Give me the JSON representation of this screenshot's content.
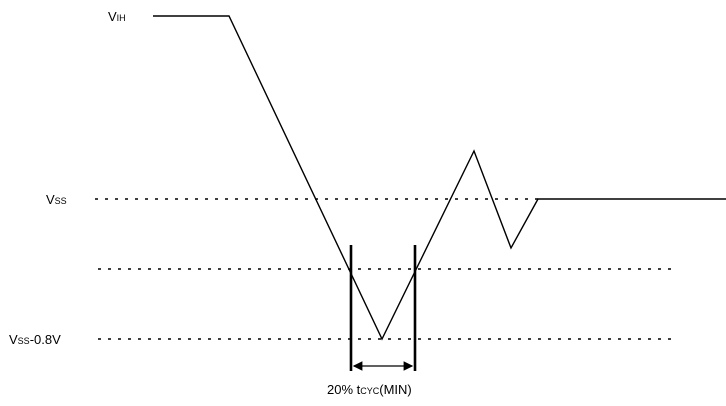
{
  "labels": {
    "vih": {
      "main": "V",
      "sub": "IH"
    },
    "vss": {
      "main": "V",
      "sub": "SS"
    },
    "vss_neg": {
      "main": "V",
      "sub": "SS",
      "suffix": "-0.8V"
    },
    "pulse_width": {
      "prefix": "20% t",
      "sub": "CYC",
      "suffix": "(MIN)"
    }
  },
  "colors": {
    "line": "#000000",
    "background": "#ffffff"
  }
}
